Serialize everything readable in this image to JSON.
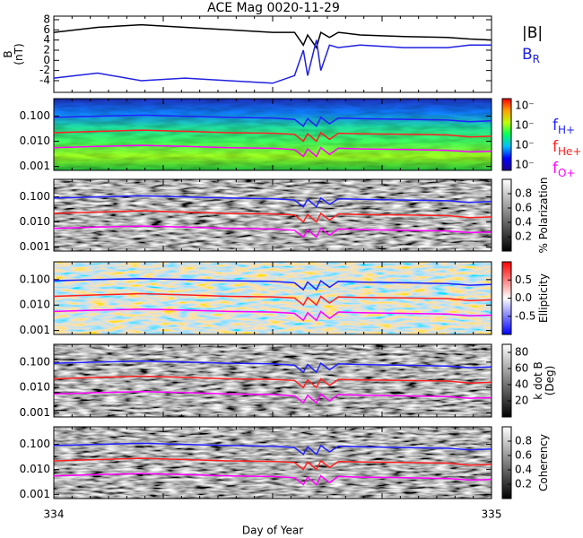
{
  "chart_data": [
    {
      "type": "line",
      "title": "ACE Mag 0020-11-29",
      "ylabel": "B",
      "ylabel_unit": "(nT)",
      "x": [
        334.0,
        334.1,
        334.2,
        334.3,
        334.4,
        334.5,
        334.55,
        334.57,
        334.58,
        334.6,
        334.61,
        334.63,
        334.65,
        334.7,
        334.8,
        334.9,
        334.95,
        335.0
      ],
      "xlim": [
        334,
        335
      ],
      "ylim": [
        -6.3,
        8.7
      ],
      "yticks": [
        -4,
        -2,
        0,
        2,
        4,
        6,
        8
      ],
      "series": [
        {
          "name": "|B|",
          "color": "#000000",
          "values": [
            5.5,
            6.5,
            7,
            6.5,
            6,
            5.5,
            5.5,
            3,
            5,
            2.5,
            5.5,
            4.5,
            5.5,
            5,
            4.7,
            4.5,
            4.2,
            4
          ]
        },
        {
          "name": "B",
          "name_sub": "R",
          "color": "#2020e0",
          "values": [
            -3.5,
            -2.5,
            -4,
            -3.5,
            -4,
            -4.5,
            -3,
            2,
            -3,
            4,
            -2,
            3,
            2.5,
            3,
            2.5,
            2.5,
            3,
            3
          ]
        }
      ]
    },
    {
      "type": "spectrogram",
      "log_y": true,
      "ylim": [
        0.0007,
        0.5
      ],
      "yticks": [
        {
          "value": 0.001,
          "label": "0.001"
        },
        {
          "value": 0.01,
          "label": "0.010"
        },
        {
          "value": 0.1,
          "label": "0.100"
        }
      ],
      "x": [
        334.0,
        334.1,
        334.2,
        334.3,
        334.4,
        334.5,
        334.55,
        334.57,
        334.58,
        334.6,
        334.61,
        334.63,
        334.65,
        334.7,
        334.8,
        334.9,
        334.95,
        335.0
      ],
      "xlim": [
        334,
        335
      ],
      "colorbar": {
        "tick_labels": [
          "10⁻",
          "10⁻",
          "10⁻",
          "10⁻"
        ],
        "colors": [
          "#200090",
          "#0000ff",
          "#00c0ff",
          "#00ff60",
          "#c0ff00",
          "#ffa000",
          "#ff0000"
        ]
      },
      "series": [
        {
          "name": "f",
          "name_sub": "H+",
          "color": "#2020ff",
          "values": [
            0.09,
            0.1,
            0.11,
            0.1,
            0.09,
            0.085,
            0.075,
            0.04,
            0.08,
            0.04,
            0.09,
            0.05,
            0.085,
            0.08,
            0.075,
            0.07,
            0.06,
            0.065
          ]
        },
        {
          "name": "f",
          "name_sub": "He+",
          "color": "#ff2020",
          "values": [
            0.022,
            0.025,
            0.028,
            0.025,
            0.022,
            0.021,
            0.019,
            0.01,
            0.02,
            0.01,
            0.022,
            0.012,
            0.021,
            0.02,
            0.019,
            0.018,
            0.015,
            0.016
          ]
        },
        {
          "name": "f",
          "name_sub": "O+",
          "color": "#ff00ff",
          "values": [
            0.0056,
            0.0063,
            0.0069,
            0.0063,
            0.0056,
            0.0053,
            0.0047,
            0.0025,
            0.005,
            0.0025,
            0.0056,
            0.003,
            0.0053,
            0.005,
            0.0047,
            0.0044,
            0.0038,
            0.004
          ]
        }
      ]
    },
    {
      "type": "spectrogram",
      "log_y": true,
      "ylim": [
        0.0007,
        0.5
      ],
      "yticks": [
        {
          "value": 0.001,
          "label": "0.001"
        },
        {
          "value": 0.01,
          "label": "0.010"
        },
        {
          "value": 0.1,
          "label": "0.100"
        }
      ],
      "x": [
        334.0,
        334.1,
        334.2,
        334.3,
        334.4,
        334.5,
        334.55,
        334.57,
        334.58,
        334.6,
        334.61,
        334.63,
        334.65,
        334.7,
        334.8,
        334.9,
        334.95,
        335.0
      ],
      "xlim": [
        334,
        335
      ],
      "colorbar": {
        "label": "% Polarization",
        "lim": [
          0,
          1
        ],
        "ticks": [
          0.2,
          0.4,
          0.6,
          0.8
        ],
        "colors": [
          "#000000",
          "#ffffff"
        ]
      },
      "series": [
        {
          "color": "#2020ff",
          "values": [
            0.09,
            0.1,
            0.11,
            0.1,
            0.09,
            0.085,
            0.075,
            0.04,
            0.08,
            0.04,
            0.09,
            0.05,
            0.085,
            0.08,
            0.075,
            0.07,
            0.06,
            0.065
          ]
        },
        {
          "color": "#ff2020",
          "values": [
            0.022,
            0.025,
            0.028,
            0.025,
            0.022,
            0.021,
            0.019,
            0.01,
            0.02,
            0.01,
            0.022,
            0.012,
            0.021,
            0.02,
            0.019,
            0.018,
            0.015,
            0.016
          ]
        },
        {
          "color": "#ff00ff",
          "values": [
            0.0056,
            0.0063,
            0.0069,
            0.0063,
            0.0056,
            0.0053,
            0.0047,
            0.0025,
            0.005,
            0.0025,
            0.0056,
            0.003,
            0.0053,
            0.005,
            0.0047,
            0.0044,
            0.0038,
            0.004
          ]
        }
      ]
    },
    {
      "type": "spectrogram",
      "log_y": true,
      "ylim": [
        0.0007,
        0.5
      ],
      "yticks": [
        {
          "value": 0.001,
          "label": "0.001"
        },
        {
          "value": 0.01,
          "label": "0.010"
        },
        {
          "value": 0.1,
          "label": "0.100"
        }
      ],
      "x": [
        334.0,
        334.1,
        334.2,
        334.3,
        334.4,
        334.5,
        334.55,
        334.57,
        334.58,
        334.6,
        334.61,
        334.63,
        334.65,
        334.7,
        334.8,
        334.9,
        334.95,
        335.0
      ],
      "xlim": [
        334,
        335
      ],
      "colorbar": {
        "label": "Ellipticity",
        "lim": [
          -1,
          1
        ],
        "ticks": [
          -0.5,
          {
            "value": 0,
            "label": "0.0"
          },
          0.5
        ],
        "colors": [
          "#0000ff",
          "#ffffff",
          "#ff0000"
        ]
      },
      "series": [
        {
          "color": "#2020ff",
          "values": [
            0.09,
            0.1,
            0.11,
            0.1,
            0.09,
            0.085,
            0.075,
            0.04,
            0.08,
            0.04,
            0.09,
            0.05,
            0.085,
            0.08,
            0.075,
            0.07,
            0.06,
            0.065
          ]
        },
        {
          "color": "#ff2020",
          "values": [
            0.022,
            0.025,
            0.028,
            0.025,
            0.022,
            0.021,
            0.019,
            0.01,
            0.02,
            0.01,
            0.022,
            0.012,
            0.021,
            0.02,
            0.019,
            0.018,
            0.015,
            0.016
          ]
        },
        {
          "color": "#ff00ff",
          "values": [
            0.0056,
            0.0063,
            0.0069,
            0.0063,
            0.0056,
            0.0053,
            0.0047,
            0.0025,
            0.005,
            0.0025,
            0.0056,
            0.003,
            0.0053,
            0.005,
            0.0047,
            0.0044,
            0.0038,
            0.004
          ]
        }
      ]
    },
    {
      "type": "spectrogram",
      "log_y": true,
      "ylim": [
        0.0007,
        0.5
      ],
      "yticks": [
        {
          "value": 0.001,
          "label": "0.001"
        },
        {
          "value": 0.01,
          "label": "0.010"
        },
        {
          "value": 0.1,
          "label": "0.100"
        }
      ],
      "x": [
        334.0,
        334.1,
        334.2,
        334.3,
        334.4,
        334.5,
        334.55,
        334.57,
        334.58,
        334.6,
        334.61,
        334.63,
        334.65,
        334.7,
        334.8,
        334.9,
        334.95,
        335.0
      ],
      "xlim": [
        334,
        335
      ],
      "colorbar": {
        "label": "k dot B",
        "label_unit": "(Deg)",
        "lim": [
          0,
          90
        ],
        "ticks": [
          20,
          40,
          60,
          80
        ],
        "colors": [
          "#000000",
          "#ffffff"
        ]
      },
      "series": [
        {
          "color": "#2020ff",
          "values": [
            0.09,
            0.1,
            0.11,
            0.1,
            0.09,
            0.085,
            0.075,
            0.04,
            0.08,
            0.04,
            0.09,
            0.05,
            0.085,
            0.08,
            0.075,
            0.07,
            0.06,
            0.065
          ]
        },
        {
          "color": "#ff2020",
          "values": [
            0.022,
            0.025,
            0.028,
            0.025,
            0.022,
            0.021,
            0.019,
            0.01,
            0.02,
            0.01,
            0.022,
            0.012,
            0.021,
            0.02,
            0.019,
            0.018,
            0.015,
            0.016
          ]
        },
        {
          "color": "#ff00ff",
          "values": [
            0.0056,
            0.0063,
            0.0069,
            0.0063,
            0.0056,
            0.0053,
            0.0047,
            0.0025,
            0.005,
            0.0025,
            0.0056,
            0.003,
            0.0053,
            0.005,
            0.0047,
            0.0044,
            0.0038,
            0.004
          ]
        }
      ]
    },
    {
      "type": "spectrogram",
      "log_y": true,
      "ylim": [
        0.0007,
        0.5
      ],
      "yticks": [
        {
          "value": 0.001,
          "label": "0.001"
        },
        {
          "value": 0.01,
          "label": "0.010"
        },
        {
          "value": 0.1,
          "label": "0.100"
        }
      ],
      "x": [
        334.0,
        334.1,
        334.2,
        334.3,
        334.4,
        334.5,
        334.55,
        334.57,
        334.58,
        334.6,
        334.61,
        334.63,
        334.65,
        334.7,
        334.8,
        334.9,
        334.95,
        335.0
      ],
      "xlim": [
        334,
        335
      ],
      "xticks": [
        334,
        335
      ],
      "xlabel": "Day of Year",
      "colorbar": {
        "label": "Coherency",
        "lim": [
          0,
          1
        ],
        "ticks": [
          0.2,
          0.4,
          0.6,
          0.8
        ],
        "colors": [
          "#000000",
          "#ffffff"
        ]
      },
      "series": [
        {
          "color": "#2020ff",
          "values": [
            0.09,
            0.1,
            0.11,
            0.1,
            0.09,
            0.085,
            0.075,
            0.04,
            0.08,
            0.04,
            0.09,
            0.05,
            0.085,
            0.08,
            0.075,
            0.07,
            0.06,
            0.065
          ]
        },
        {
          "color": "#ff2020",
          "values": [
            0.022,
            0.025,
            0.028,
            0.025,
            0.022,
            0.021,
            0.019,
            0.01,
            0.02,
            0.01,
            0.022,
            0.012,
            0.021,
            0.02,
            0.019,
            0.018,
            0.015,
            0.016
          ]
        },
        {
          "color": "#ff00ff",
          "values": [
            0.0056,
            0.0063,
            0.0069,
            0.0063,
            0.0056,
            0.0053,
            0.0047,
            0.0025,
            0.005,
            0.0025,
            0.0056,
            0.003,
            0.0053,
            0.005,
            0.0047,
            0.0044,
            0.0038,
            0.004
          ]
        }
      ]
    }
  ]
}
